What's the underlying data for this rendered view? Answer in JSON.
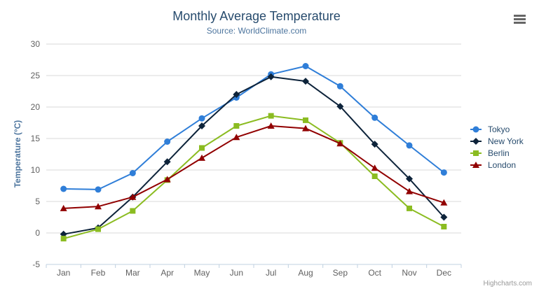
{
  "header": {
    "title": "Monthly Average Temperature",
    "subtitle": "Source: WorldClimate.com"
  },
  "credits": "Highcharts.com",
  "menu": {
    "icon": "hamburger-menu"
  },
  "colors": {
    "title": "#274b6d",
    "subtitle": "#4d759e",
    "axis_title": "#4d759e",
    "legend_text": "#274b6d",
    "tick_label": "#606060",
    "grid": "#d8d8d8",
    "axis_line": "#c0d0e0",
    "credits": "#999999",
    "menu_icon": "#666666"
  },
  "chart_data": {
    "type": "line",
    "title": "Monthly Average Temperature",
    "subtitle": "Source: WorldClimate.com",
    "xlabel": "",
    "ylabel": "Temperature (°C)",
    "ylim": [
      -5,
      30
    ],
    "y_ticks": [
      -5,
      0,
      5,
      10,
      15,
      20,
      25,
      30
    ],
    "grid": "horizontal",
    "legend_position": "right",
    "categories": [
      "Jan",
      "Feb",
      "Mar",
      "Apr",
      "May",
      "Jun",
      "Jul",
      "Aug",
      "Sep",
      "Oct",
      "Nov",
      "Dec"
    ],
    "series": [
      {
        "name": "Tokyo",
        "color": "#2f7ed8",
        "marker": "circle",
        "values": [
          7.0,
          6.9,
          9.5,
          14.5,
          18.2,
          21.5,
          25.2,
          26.5,
          23.3,
          18.3,
          13.9,
          9.6
        ]
      },
      {
        "name": "New York",
        "color": "#0d233a",
        "marker": "diamond",
        "values": [
          -0.2,
          0.8,
          5.7,
          11.3,
          17.0,
          22.0,
          24.8,
          24.1,
          20.1,
          14.1,
          8.6,
          2.5
        ]
      },
      {
        "name": "Berlin",
        "color": "#8bbc21",
        "marker": "square",
        "values": [
          -0.9,
          0.6,
          3.5,
          8.4,
          13.5,
          17.0,
          18.6,
          17.9,
          14.3,
          9.0,
          3.9,
          1.0
        ]
      },
      {
        "name": "London",
        "color": "#910000",
        "marker": "triangle",
        "values": [
          3.9,
          4.2,
          5.7,
          8.5,
          11.9,
          15.2,
          17.0,
          16.6,
          14.2,
          10.3,
          6.6,
          4.8
        ]
      }
    ]
  }
}
